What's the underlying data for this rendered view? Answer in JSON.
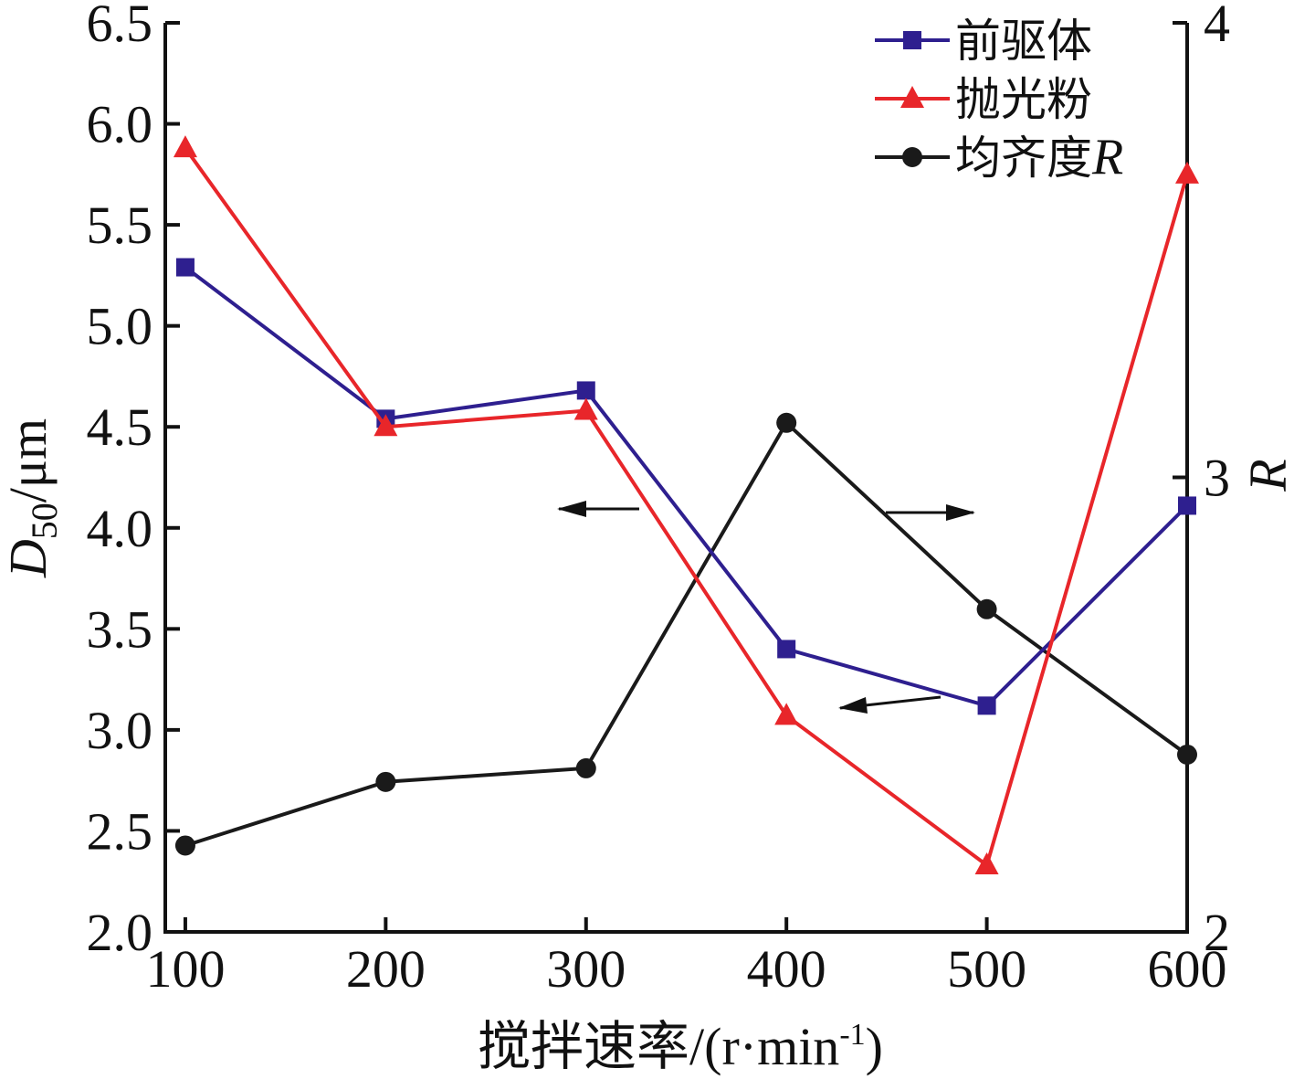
{
  "chart_data": {
    "type": "line",
    "x": [
      100,
      200,
      300,
      400,
      500,
      600
    ],
    "xlabel": "搅拌速率/(r·min",
    "xlabel_sup": "-1",
    "xlabel_end": ")",
    "ylabel_main": "D",
    "ylabel_sub": "50",
    "ylabel_unit": "/μm",
    "y2label": "R",
    "xlim": [
      90,
      600
    ],
    "ylim": [
      2.0,
      6.5
    ],
    "y2lim": [
      2,
      4
    ],
    "x_ticks": [
      "100",
      "200",
      "300",
      "400",
      "500",
      "600"
    ],
    "y_ticks": [
      "2.0",
      "2.5",
      "3.0",
      "3.5",
      "4.0",
      "4.5",
      "5.0",
      "5.5",
      "6.0",
      "6.5"
    ],
    "y2_ticks": [
      "2",
      "3",
      "4"
    ],
    "grid": false,
    "legend_position": "top-right",
    "series": [
      {
        "name": "前驱体",
        "axis": "left",
        "color": "#2e1f8f",
        "marker": "square",
        "values": [
          5.29,
          4.54,
          4.68,
          3.4,
          3.12,
          4.11
        ]
      },
      {
        "name": "抛光粉",
        "axis": "left",
        "color": "#e8262a",
        "marker": "triangle",
        "values": [
          5.88,
          4.5,
          4.58,
          3.07,
          2.33,
          5.75
        ]
      },
      {
        "name": "均齐度",
        "name_suffix": "R",
        "axis": "right",
        "color": "#1a1a1a",
        "marker": "circle",
        "values": [
          2.19,
          2.33,
          2.36,
          3.12,
          2.71,
          2.39
        ]
      }
    ]
  }
}
